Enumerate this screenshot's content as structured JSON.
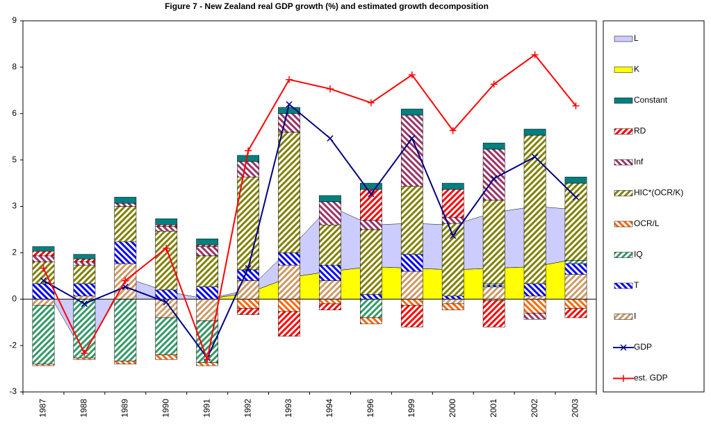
{
  "chart_data": {
    "type": "bar",
    "title": "Figure 7 - New Zealand real GDP growth (%) and estimated growth decomposition",
    "categories": [
      "1987",
      "1988",
      "1989",
      "1990",
      "1991",
      "1992",
      "1993",
      "1994",
      "1996",
      "1999",
      "2000",
      "2001",
      "2002",
      "2003"
    ],
    "ylim": [
      -3,
      9
    ],
    "yticks": [
      -3,
      {
        "value": -1.5,
        "label": "-2"
      },
      0,
      {
        "value": 1.5,
        "label": "2"
      },
      3,
      {
        "value": 4.5,
        "label": "5"
      },
      6,
      {
        "value": 7.5,
        "label": "8"
      },
      9
    ],
    "series": [
      {
        "name": "L",
        "type": "area",
        "color": "#ccccff",
        "hatch": false,
        "values": [
          0.5,
          -1.8,
          0.7,
          0.25,
          0,
          0.1,
          0.9,
          2.1,
          1.35,
          1.45,
          1.45,
          1.8,
          1.95,
          1.6
        ]
      },
      {
        "name": "K",
        "type": "area",
        "color": "#ffff00",
        "hatch": false,
        "values": [
          0,
          0,
          0,
          0,
          0,
          0.2,
          0.7,
          0.9,
          1.05,
          1.0,
          0.95,
          1.0,
          1.05,
          1.3
        ]
      },
      {
        "name": "Constant",
        "type": "bar",
        "color": "#008080",
        "hatch": false,
        "values": [
          0.15,
          0.15,
          0.2,
          0.2,
          0.2,
          0.2,
          0.2,
          0.2,
          0.2,
          0.2,
          0.2,
          0.2,
          0.2,
          0.2
        ]
      },
      {
        "name": "RD",
        "type": "bar",
        "color": "#ff0000",
        "hatch": true,
        "values": [
          0.15,
          0.1,
          0,
          0.05,
          0.05,
          -0.2,
          -0.8,
          -0.2,
          1.0,
          -0.7,
          0.9,
          -0.85,
          0,
          -0.3
        ]
      },
      {
        "name": "Inf",
        "type": "bar",
        "color": "#993366",
        "hatch": true,
        "values": [
          0.2,
          0.1,
          0.1,
          0.15,
          0.3,
          0.5,
          0.6,
          0.75,
          0.3,
          2.3,
          0.2,
          1.65,
          -0.2,
          0
        ]
      },
      {
        "name": "HIC*(OCR/K)",
        "type": "bar",
        "color": "#808000",
        "hatch": true,
        "values": [
          0.7,
          0.6,
          1.15,
          1.9,
          1.0,
          3.0,
          3.9,
          1.3,
          2.1,
          2.2,
          2.35,
          2.7,
          4.8,
          2.5
        ]
      },
      {
        "name": "OCR/L",
        "type": "bar",
        "color": "#ff6600",
        "hatch": true,
        "values": [
          -0.05,
          -0.05,
          -0.1,
          -0.15,
          -0.1,
          -0.3,
          -0.4,
          -0.15,
          -0.2,
          -0.2,
          -0.2,
          -0.05,
          -0.45,
          -0.3
        ]
      },
      {
        "name": "IQ",
        "type": "bar",
        "color": "#339966",
        "hatch": true,
        "values": [
          -1.9,
          -1.9,
          -2.0,
          -1.2,
          -1.35,
          0,
          0,
          0,
          -0.6,
          0,
          0,
          0.05,
          0,
          0.1
        ]
      },
      {
        "name": "T",
        "type": "bar",
        "color": "#0000ff",
        "hatch": true,
        "values": [
          0.5,
          0.4,
          0.7,
          0.3,
          0.4,
          0.35,
          0.4,
          0.5,
          0.15,
          0.55,
          0.1,
          0.05,
          0.4,
          0.35
        ]
      },
      {
        "name": "I",
        "type": "bar",
        "color": "#cc9966",
        "hatch": true,
        "values": [
          -0.2,
          0.1,
          1.15,
          -0.6,
          -0.7,
          0.6,
          1.1,
          0.6,
          0,
          0.9,
          -0.15,
          0.4,
          0.1,
          0.8
        ]
      },
      {
        "name": "GDP",
        "type": "line",
        "color": "#000080",
        "marker": "x",
        "values": [
          0.6,
          -0.15,
          0.4,
          -0.1,
          -1.9,
          1.0,
          6.3,
          5.2,
          3.4,
          5.2,
          2.05,
          3.9,
          4.6,
          3.3
        ]
      },
      {
        "name": "est. GDP",
        "type": "line",
        "color": "#ff0000",
        "marker": "+",
        "values": [
          1.0,
          -1.75,
          0.6,
          1.65,
          -1.95,
          4.8,
          7.1,
          6.8,
          6.35,
          7.25,
          5.45,
          6.95,
          7.9,
          6.25
        ]
      }
    ]
  }
}
